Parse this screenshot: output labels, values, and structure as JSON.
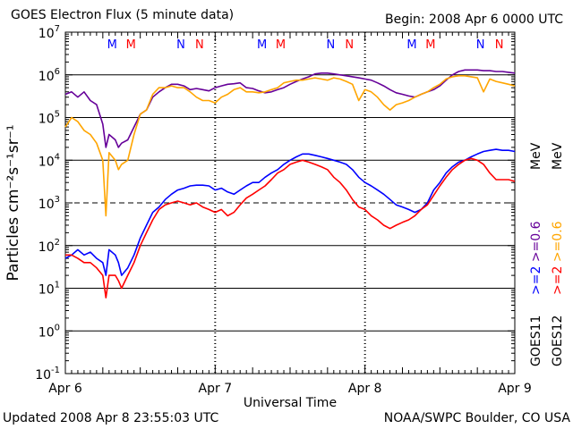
{
  "header": {
    "title": "GOES Electron Flux (5 minute data)",
    "begin": "Begin: 2008 Apr 6 0000 UTC"
  },
  "footer": {
    "updated": "Updated 2008 Apr  8 23:55:03 UTC",
    "credit": "NOAA/SWPC Boulder, CO USA"
  },
  "chart_data": {
    "type": "line",
    "title": "GOES Electron Flux (5 minute data)",
    "xlabel": "Universal Time",
    "ylabel": "Particles cm⁻²s⁻¹sr⁻¹",
    "yscale": "log",
    "ylim": [
      0.1,
      10000000
    ],
    "xlim": [
      0,
      72
    ],
    "x_unit": "hours since 2008 Apr 6 0000 UTC",
    "x_ticks": [
      {
        "x": 0,
        "label": "Apr 6"
      },
      {
        "x": 24,
        "label": "Apr 7"
      },
      {
        "x": 48,
        "label": "Apr 8"
      },
      {
        "x": 72,
        "label": "Apr 9"
      }
    ],
    "y_ticks": [
      {
        "base": "10",
        "exp": "-1",
        "value": 0.1
      },
      {
        "base": "10",
        "exp": "0",
        "value": 1
      },
      {
        "base": "10",
        "exp": "1",
        "value": 10
      },
      {
        "base": "10",
        "exp": "2",
        "value": 100
      },
      {
        "base": "10",
        "exp": "3",
        "value": 1000
      },
      {
        "base": "10",
        "exp": "4",
        "value": 10000
      },
      {
        "base": "10",
        "exp": "5",
        "value": 100000
      },
      {
        "base": "10",
        "exp": "6",
        "value": 1000000
      },
      {
        "base": "10",
        "exp": "7",
        "value": 10000000
      }
    ],
    "grid": {
      "horizontal_lines": [
        1,
        10,
        100,
        10000,
        100000,
        1000000
      ],
      "dashed_line": 1000
    },
    "midnight_markers": [
      24,
      48
    ],
    "legend": {
      "placement": "right",
      "energy": {
        "ge2": ">=2",
        "ge06": ">=0.6",
        "unit": "MeV"
      },
      "satellites": [
        "GOES11",
        "GOES12"
      ]
    },
    "mn_markers": [
      {
        "x": 7.5,
        "label": "M",
        "color": "#0000ff"
      },
      {
        "x": 10.5,
        "label": "M",
        "color": "#ff0000"
      },
      {
        "x": 18.5,
        "label": "N",
        "color": "#0000ff"
      },
      {
        "x": 21.5,
        "label": "N",
        "color": "#ff0000"
      },
      {
        "x": 31.5,
        "label": "M",
        "color": "#0000ff"
      },
      {
        "x": 34.5,
        "label": "M",
        "color": "#ff0000"
      },
      {
        "x": 42.5,
        "label": "N",
        "color": "#0000ff"
      },
      {
        "x": 45.5,
        "label": "N",
        "color": "#ff0000"
      },
      {
        "x": 55.5,
        "label": "M",
        "color": "#0000ff"
      },
      {
        "x": 58.5,
        "label": "M",
        "color": "#ff0000"
      },
      {
        "x": 66.5,
        "label": "N",
        "color": "#0000ff"
      },
      {
        "x": 69.5,
        "label": "N",
        "color": "#ff0000"
      }
    ],
    "series": [
      {
        "name": "GOES11 >=0.6 MeV",
        "color": "#660099",
        "x": [
          0,
          1,
          2,
          3,
          4,
          5,
          6,
          6.5,
          7,
          8,
          8.5,
          9,
          10,
          11,
          12,
          13,
          14,
          15,
          16,
          17,
          18,
          19,
          20,
          21,
          22,
          23,
          24,
          25,
          26,
          27,
          28,
          29,
          30,
          31,
          32,
          33,
          34,
          35,
          36,
          37,
          38,
          39,
          40,
          41,
          42,
          43,
          44,
          45,
          46,
          47,
          48,
          49,
          50,
          51,
          52,
          53,
          54,
          55,
          56,
          57,
          58,
          59,
          60,
          61,
          62,
          63,
          64,
          65,
          66,
          67,
          68,
          69,
          70,
          71,
          72
        ],
        "y": [
          350000,
          400000,
          300000,
          400000,
          250000,
          200000,
          70000,
          20000,
          40000,
          30000,
          20000,
          25000,
          30000,
          60000,
          120000,
          150000,
          300000,
          400000,
          500000,
          600000,
          600000,
          550000,
          450000,
          480000,
          450000,
          420000,
          500000,
          550000,
          600000,
          620000,
          650000,
          500000,
          480000,
          420000,
          380000,
          400000,
          450000,
          500000,
          600000,
          700000,
          800000,
          900000,
          1050000,
          1100000,
          1100000,
          1050000,
          1000000,
          950000,
          900000,
          850000,
          800000,
          750000,
          650000,
          550000,
          450000,
          380000,
          350000,
          320000,
          300000,
          350000,
          400000,
          450000,
          550000,
          750000,
          1000000,
          1200000,
          1300000,
          1300000,
          1300000,
          1250000,
          1250000,
          1200000,
          1200000,
          1150000,
          1100000
        ]
      },
      {
        "name": "GOES12 >=0.6 MeV",
        "color": "#ffa500",
        "x": [
          0,
          1,
          2,
          3,
          4,
          5,
          6,
          6.5,
          7,
          8,
          8.5,
          9,
          10,
          11,
          12,
          13,
          14,
          15,
          16,
          17,
          18,
          19,
          20,
          21,
          22,
          23,
          24,
          25,
          26,
          27,
          28,
          29,
          30,
          31,
          32,
          33,
          34,
          35,
          36,
          37,
          38,
          39,
          40,
          41,
          42,
          43,
          44,
          45,
          46,
          47,
          48,
          49,
          50,
          51,
          52,
          53,
          54,
          55,
          56,
          57,
          58,
          59,
          60,
          61,
          62,
          63,
          64,
          65,
          66,
          67,
          68,
          69,
          70,
          71,
          72
        ],
        "y": [
          60000,
          100000,
          80000,
          50000,
          40000,
          25000,
          10000,
          500,
          15000,
          10000,
          6000,
          8000,
          10000,
          40000,
          120000,
          150000,
          350000,
          500000,
          500000,
          550000,
          500000,
          500000,
          400000,
          300000,
          250000,
          250000,
          220000,
          300000,
          350000,
          450000,
          500000,
          400000,
          400000,
          380000,
          400000,
          450000,
          500000,
          650000,
          700000,
          750000,
          750000,
          800000,
          850000,
          800000,
          750000,
          850000,
          800000,
          700000,
          600000,
          250000,
          450000,
          400000,
          300000,
          200000,
          150000,
          200000,
          220000,
          250000,
          300000,
          350000,
          400000,
          500000,
          600000,
          800000,
          900000,
          950000,
          950000,
          900000,
          850000,
          400000,
          800000,
          700000,
          650000,
          600000,
          550000
        ]
      },
      {
        "name": "GOES11 >=2 MeV",
        "color": "#0000ff",
        "x": [
          0,
          1,
          2,
          3,
          4,
          5,
          6,
          6.5,
          7,
          8,
          8.5,
          9,
          10,
          11,
          12,
          13,
          14,
          15,
          16,
          17,
          18,
          19,
          20,
          21,
          22,
          23,
          24,
          25,
          26,
          27,
          28,
          29,
          30,
          31,
          32,
          33,
          34,
          35,
          36,
          37,
          38,
          39,
          40,
          41,
          42,
          43,
          44,
          45,
          46,
          47,
          48,
          49,
          50,
          51,
          52,
          53,
          54,
          55,
          56,
          57,
          58,
          59,
          60,
          61,
          62,
          63,
          64,
          65,
          66,
          67,
          68,
          69,
          70,
          71,
          72
        ],
        "y": [
          50,
          60,
          80,
          60,
          70,
          50,
          40,
          20,
          80,
          60,
          40,
          20,
          30,
          60,
          150,
          300,
          600,
          800,
          1200,
          1600,
          2000,
          2200,
          2500,
          2600,
          2600,
          2500,
          2000,
          2200,
          1800,
          1600,
          2000,
          2500,
          3000,
          3000,
          4000,
          5000,
          6000,
          8000,
          10000,
          12000,
          14000,
          14000,
          13000,
          12000,
          11000,
          10000,
          9000,
          8000,
          6000,
          4000,
          3000,
          2500,
          2000,
          1600,
          1200,
          900,
          800,
          700,
          600,
          700,
          1000,
          2000,
          3000,
          5000,
          7000,
          9000,
          10000,
          12000,
          14000,
          16000,
          17000,
          18000,
          17000,
          17000,
          16000
        ]
      },
      {
        "name": "GOES12 >=2 MeV",
        "color": "#ff0000",
        "x": [
          0,
          1,
          2,
          3,
          4,
          5,
          6,
          6.5,
          7,
          8,
          8.5,
          9,
          10,
          11,
          12,
          13,
          14,
          15,
          16,
          17,
          18,
          19,
          20,
          21,
          22,
          23,
          24,
          25,
          26,
          27,
          28,
          29,
          30,
          31,
          32,
          33,
          34,
          35,
          36,
          37,
          38,
          39,
          40,
          41,
          42,
          43,
          44,
          45,
          46,
          47,
          48,
          49,
          50,
          51,
          52,
          53,
          54,
          55,
          56,
          57,
          58,
          59,
          60,
          61,
          62,
          63,
          64,
          65,
          66,
          67,
          68,
          69,
          70,
          71,
          72
        ],
        "y": [
          60,
          60,
          50,
          40,
          40,
          30,
          20,
          6,
          20,
          20,
          15,
          10,
          20,
          40,
          100,
          200,
          400,
          700,
          900,
          1000,
          1100,
          1000,
          900,
          1000,
          800,
          700,
          600,
          700,
          500,
          600,
          900,
          1300,
          1600,
          2000,
          2500,
          3500,
          5000,
          6000,
          8000,
          9000,
          10000,
          9000,
          8000,
          7000,
          6000,
          4000,
          3000,
          2000,
          1200,
          800,
          700,
          500,
          400,
          300,
          250,
          300,
          350,
          400,
          500,
          700,
          900,
          1500,
          2500,
          4000,
          6000,
          8000,
          10000,
          11000,
          10000,
          8000,
          5000,
          3500,
          3500,
          3500,
          3200
        ]
      }
    ]
  }
}
